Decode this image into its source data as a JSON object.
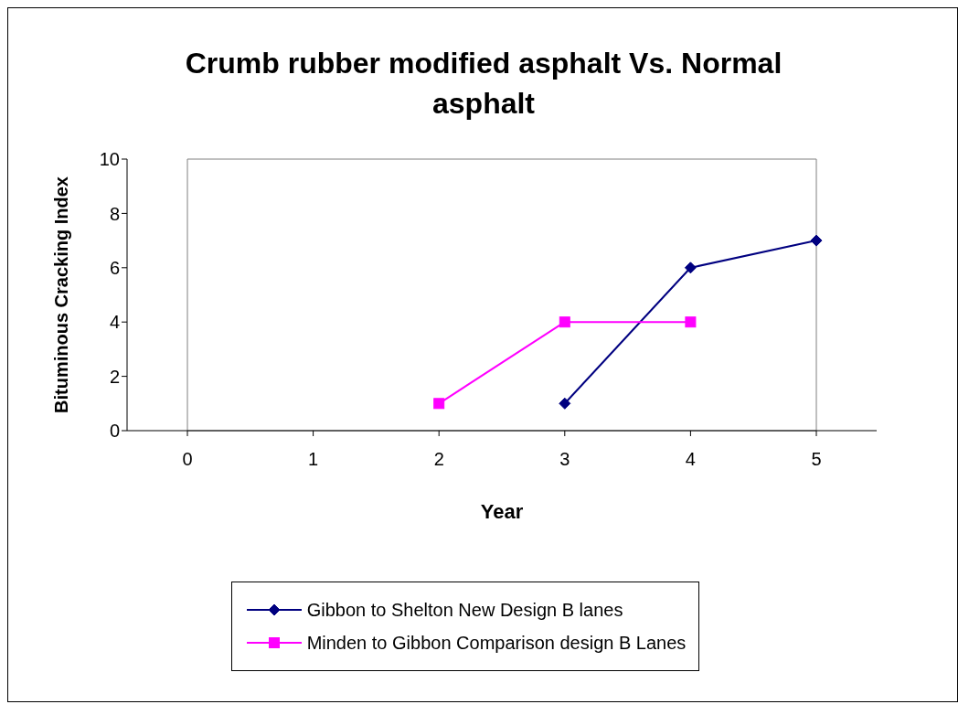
{
  "chart_data": {
    "type": "line",
    "title": "Crumb rubber modified asphalt Vs. Normal asphalt",
    "xlabel": "Year",
    "ylabel": "Bituminous Cracking Index",
    "categories": [
      "0",
      "1",
      "2",
      "3",
      "4",
      "5"
    ],
    "series": [
      {
        "name": "Gibbon to Shelton New Design B lanes",
        "color": "#000080",
        "marker": "diamond",
        "values": [
          null,
          null,
          null,
          1,
          6,
          7
        ]
      },
      {
        "name": "Minden to Gibbon Comparison design B Lanes",
        "color": "#ff00ff",
        "marker": "square",
        "values": [
          null,
          null,
          1,
          4,
          4,
          null
        ]
      }
    ],
    "ylim": [
      0,
      10
    ],
    "yticks": [
      0,
      2,
      4,
      6,
      8,
      10
    ],
    "legend": "bottom",
    "line_style": "solid"
  }
}
